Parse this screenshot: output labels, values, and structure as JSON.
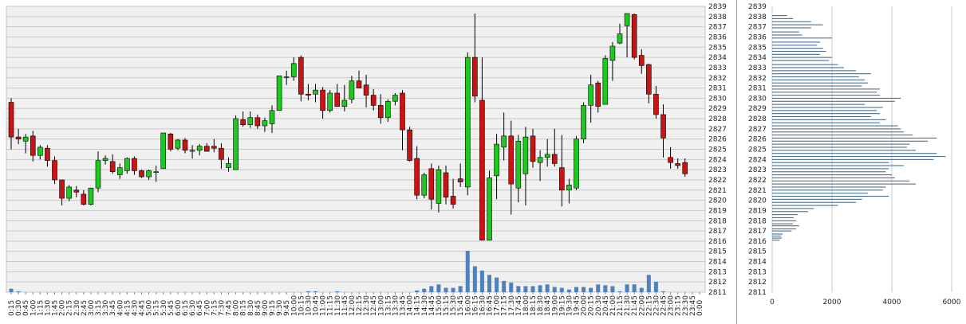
{
  "chart_data": [
    {
      "type": "candlestick",
      "title": "",
      "ylim": [
        2811,
        2839
      ],
      "y_ticks": [
        2811,
        2812,
        2813,
        2814,
        2815,
        2816,
        2817,
        2818,
        2819,
        2820,
        2821,
        2822,
        2823,
        2824,
        2825,
        2826,
        2827,
        2828,
        2829,
        2830,
        2831,
        2832,
        2833,
        2834,
        2835,
        2836,
        2837,
        2838,
        2839
      ],
      "grid": true,
      "bullish_color": "#1ec81e",
      "bearish_color": "#c81414",
      "volume_color": "#4f81bd",
      "times": [
        "0:15",
        "0:30",
        "0:45",
        "1:00",
        "1:15",
        "1:30",
        "1:45",
        "2:00",
        "2:15",
        "2:30",
        "2:45",
        "3:00",
        "3:15",
        "3:30",
        "3:45",
        "4:00",
        "4:15",
        "4:30",
        "4:45",
        "5:00",
        "5:15",
        "5:30",
        "5:45",
        "6:00",
        "6:15",
        "6:30",
        "6:45",
        "7:00",
        "7:15",
        "7:30",
        "7:45",
        "8:00",
        "8:15",
        "8:30",
        "8:45",
        "9:00",
        "9:15",
        "9:30",
        "9:45",
        "10:00",
        "10:15",
        "10:30",
        "10:45",
        "11:00",
        "11:15",
        "11:30",
        "11:45",
        "12:00",
        "12:15",
        "12:30",
        "12:45",
        "13:00",
        "13:15",
        "13:30",
        "13:45",
        "14:00",
        "14:15",
        "14:30",
        "14:45",
        "15:00",
        "15:15",
        "15:30",
        "15:45",
        "16:00",
        "16:15",
        "16:30",
        "16:45",
        "17:00",
        "17:15",
        "17:30",
        "17:45",
        "18:00",
        "18:15",
        "18:30",
        "18:45",
        "19:00",
        "19:15",
        "19:30",
        "19:45",
        "20:00",
        "20:15",
        "20:30",
        "20:45",
        "21:00",
        "21:15",
        "21:30",
        "21:45",
        "22:00",
        "22:15",
        "22:30",
        "22:45",
        "23:00",
        "23:15",
        "23:30",
        "23:45",
        "0:00"
      ],
      "ohlc": [
        [
          2829.6,
          2830,
          2825,
          2826.2
        ],
        [
          2826.2,
          2827,
          2825.5,
          2826
        ],
        [
          2825.8,
          2826.5,
          2824.6,
          2826.2
        ],
        [
          2826.3,
          2826.8,
          2823.8,
          2824.4
        ],
        [
          2824.4,
          2825.4,
          2824,
          2825.2
        ],
        [
          2825.1,
          2825.4,
          2823.3,
          2823.9
        ],
        [
          2823.9,
          2824.3,
          2821.6,
          2822
        ],
        [
          2822,
          2822,
          2819.5,
          2820.2
        ],
        [
          2820.2,
          2821.5,
          2819.9,
          2821.3
        ],
        [
          2821,
          2821.4,
          2820.3,
          2820.8
        ],
        [
          2820.6,
          2821,
          2819.5,
          2819.6
        ],
        [
          2819.6,
          2821.2,
          2819.5,
          2821.2
        ],
        [
          2821.2,
          2824.8,
          2820.8,
          2823.9
        ],
        [
          2823.9,
          2824.4,
          2823.5,
          2824.1
        ],
        [
          2823.8,
          2824.5,
          2822.6,
          2822.8
        ],
        [
          2822.5,
          2823.6,
          2822.1,
          2823.2
        ],
        [
          2822.9,
          2824.2,
          2822.6,
          2824.1
        ],
        [
          2824.1,
          2824.3,
          2822.5,
          2822.9
        ],
        [
          2822.9,
          2823,
          2822.2,
          2822.3
        ],
        [
          2822.3,
          2823,
          2822,
          2822.9
        ],
        [
          2822.8,
          2823.4,
          2821.8,
          2822.8
        ],
        [
          2823.1,
          2826.6,
          2823.1,
          2826.6
        ],
        [
          2826.5,
          2826.6,
          2824.8,
          2825
        ],
        [
          2825.1,
          2826,
          2824.9,
          2825.9
        ],
        [
          2825.9,
          2826.1,
          2824.6,
          2824.9
        ],
        [
          2824.8,
          2825.4,
          2824.1,
          2824.9
        ],
        [
          2824.9,
          2825.5,
          2824.4,
          2825.3
        ],
        [
          2825.3,
          2825.6,
          2824.8,
          2824.8
        ],
        [
          2825.3,
          2826,
          2824.7,
          2825.1
        ],
        [
          2825.1,
          2825.6,
          2823.1,
          2824
        ],
        [
          2823.2,
          2824.2,
          2822.8,
          2823.6
        ],
        [
          2823,
          2828.3,
          2823,
          2828
        ],
        [
          2827.9,
          2828.7,
          2827.2,
          2827.4
        ],
        [
          2827.4,
          2828.7,
          2827.1,
          2828.1
        ],
        [
          2828.1,
          2828.4,
          2827,
          2827.3
        ],
        [
          2827.3,
          2828.1,
          2826.7,
          2827.8
        ],
        [
          2827.5,
          2829.3,
          2826.6,
          2828.8
        ],
        [
          2828.8,
          2832.2,
          2828.8,
          2832.2
        ],
        [
          2832.1,
          2832.7,
          2831.3,
          2832.1
        ],
        [
          2832.1,
          2834,
          2831.7,
          2833.4
        ],
        [
          2834,
          2834.2,
          2829.7,
          2830.4
        ],
        [
          2830.4,
          2831.4,
          2829.8,
          2830.3
        ],
        [
          2830.4,
          2831.4,
          2829.6,
          2830.8
        ],
        [
          2830.8,
          2831.1,
          2828,
          2828.8
        ],
        [
          2828.8,
          2830.8,
          2828.6,
          2830.5
        ],
        [
          2830.5,
          2831.4,
          2829.2,
          2829.2
        ],
        [
          2829.2,
          2831.3,
          2828.7,
          2829.8
        ],
        [
          2829.9,
          2832.2,
          2829.5,
          2831.7
        ],
        [
          2831.7,
          2832.7,
          2831.1,
          2831
        ],
        [
          2831.3,
          2832.3,
          2829.1,
          2830.3
        ],
        [
          2830.3,
          2830.9,
          2828.8,
          2829.3
        ],
        [
          2829.3,
          2830.4,
          2827.5,
          2828.1
        ],
        [
          2828.1,
          2829.9,
          2827.7,
          2829.7
        ],
        [
          2829.7,
          2830.5,
          2829.3,
          2830.3
        ],
        [
          2830.5,
          2830.8,
          2824.9,
          2826.9
        ],
        [
          2826.9,
          2827.2,
          2823.8,
          2823.9
        ],
        [
          2824.1,
          2825.3,
          2820.1,
          2820.5
        ],
        [
          2820.5,
          2822.7,
          2820.2,
          2822.5
        ],
        [
          2823.1,
          2823.6,
          2819.1,
          2820.1
        ],
        [
          2819.7,
          2823.4,
          2818.8,
          2823
        ],
        [
          2822.7,
          2823.4,
          2819.6,
          2820.3
        ],
        [
          2820.4,
          2822.1,
          2819.2,
          2819.6
        ],
        [
          2822.1,
          2823.6,
          2821.3,
          2821.8
        ],
        [
          2821.3,
          2834.5,
          2820.5,
          2834
        ],
        [
          2834,
          2838.3,
          2829.6,
          2830.2
        ],
        [
          2829.8,
          2834,
          2816.1,
          2816.1
        ],
        [
          2816.1,
          2822.9,
          2816.1,
          2822.2
        ],
        [
          2822.4,
          2826.5,
          2820.1,
          2825.5
        ],
        [
          2825.2,
          2828.6,
          2823.9,
          2826.3
        ],
        [
          2826.3,
          2827.8,
          2818.6,
          2821.6
        ],
        [
          2821.2,
          2826.4,
          2819.8,
          2825.8
        ],
        [
          2822.6,
          2827.2,
          2819.5,
          2826.2
        ],
        [
          2826.3,
          2827,
          2823.2,
          2823.8
        ],
        [
          2823.7,
          2824.9,
          2821.9,
          2824.2
        ],
        [
          2824.2,
          2826,
          2823.3,
          2824.5
        ],
        [
          2824.5,
          2827,
          2823.3,
          2823.6
        ],
        [
          2823.2,
          2826.4,
          2819.4,
          2821
        ],
        [
          2821,
          2822.1,
          2819.7,
          2821.5
        ],
        [
          2821.2,
          2826.3,
          2821,
          2826
        ],
        [
          2826,
          2829.6,
          2825.6,
          2829.3
        ],
        [
          2829.3,
          2832.3,
          2827.6,
          2831.3
        ],
        [
          2831.5,
          2831.7,
          2828.6,
          2829.2
        ],
        [
          2829.4,
          2834.2,
          2829.4,
          2833.9
        ],
        [
          2833.7,
          2835.5,
          2831.7,
          2835.1
        ],
        [
          2835.4,
          2837.3,
          2835.3,
          2836.3
        ],
        [
          2837.1,
          2838.3,
          2834,
          2838.3
        ],
        [
          2838.2,
          2838.3,
          2833.8,
          2834
        ],
        [
          2834.2,
          2834.8,
          2832.4,
          2833.2
        ],
        [
          2833.3,
          2833.4,
          2829.5,
          2830.4
        ],
        [
          2830.4,
          2831.2,
          2828,
          2828.4
        ],
        [
          2828.4,
          2829.4,
          2824.2,
          2826.1
        ],
        [
          2824.2,
          2825.2,
          2823.1,
          2823.7
        ],
        [
          2823.6,
          2824.1,
          2823.1,
          2823.4
        ],
        [
          2823.7,
          2824.1,
          2822.3,
          2822.6
        ],
        null
      ],
      "volume": [
        4,
        1,
        0,
        0,
        0,
        0,
        0,
        0,
        0,
        0,
        0,
        0,
        0,
        0,
        0,
        0,
        0,
        0,
        0,
        0,
        0,
        0,
        0,
        0,
        0,
        0,
        0,
        0,
        0,
        0,
        0,
        0,
        0,
        0,
        0,
        0,
        0,
        0,
        0,
        0,
        0,
        1,
        1,
        0,
        0,
        1,
        0,
        0,
        0,
        0,
        0,
        0,
        0,
        0,
        0,
        0,
        2,
        4,
        7,
        9,
        5,
        5,
        7,
        48,
        30,
        25,
        20,
        17,
        13,
        11,
        7,
        7,
        7,
        8,
        9,
        6,
        5,
        3,
        6,
        6,
        5,
        9,
        8,
        7,
        1,
        9,
        9,
        5,
        20,
        12,
        1,
        0,
        0,
        0,
        0,
        0
      ]
    },
    {
      "type": "bar",
      "orientation": "horizontal",
      "title": "",
      "xlim": [
        0,
        6000
      ],
      "x_ticks": [
        "0",
        "2000",
        "4000",
        "6000"
      ],
      "grid": true,
      "bar_color": "#4a6f8f",
      "price_ticks": [
        2811,
        2812,
        2813,
        2814,
        2815,
        2816,
        2817,
        2818,
        2819,
        2820,
        2821,
        2822,
        2823,
        2824,
        2825,
        2826,
        2827,
        2828,
        2829,
        2830,
        2831,
        2832,
        2833,
        2834,
        2835,
        2836,
        2837,
        2838,
        2839
      ],
      "profile": [
        [
          2816.1,
          250
        ],
        [
          2816.3,
          320
        ],
        [
          2816.5,
          300
        ],
        [
          2816.7,
          350
        ],
        [
          2817.0,
          650
        ],
        [
          2817.2,
          800
        ],
        [
          2817.5,
          900
        ],
        [
          2817.7,
          700
        ],
        [
          2818.0,
          800
        ],
        [
          2818.3,
          720
        ],
        [
          2818.6,
          850
        ],
        [
          2818.9,
          1200
        ],
        [
          2819.2,
          1400
        ],
        [
          2819.5,
          2200
        ],
        [
          2819.8,
          2800
        ],
        [
          2820.1,
          3000
        ],
        [
          2820.4,
          3900
        ],
        [
          2820.7,
          3200
        ],
        [
          2821.0,
          3700
        ],
        [
          2821.3,
          3800
        ],
        [
          2821.6,
          4800
        ],
        [
          2821.9,
          4600
        ],
        [
          2822.2,
          4100
        ],
        [
          2822.5,
          4000
        ],
        [
          2822.8,
          3800
        ],
        [
          2823.1,
          3900
        ],
        [
          2823.4,
          4400
        ],
        [
          2823.7,
          3900
        ],
        [
          2824.0,
          5400
        ],
        [
          2824.3,
          5800
        ],
        [
          2824.6,
          5500
        ],
        [
          2824.9,
          4800
        ],
        [
          2825.2,
          4500
        ],
        [
          2825.5,
          4600
        ],
        [
          2825.8,
          5200
        ],
        [
          2826.1,
          5500
        ],
        [
          2826.4,
          4700
        ],
        [
          2826.7,
          4400
        ],
        [
          2827.0,
          4300
        ],
        [
          2827.3,
          4200
        ],
        [
          2827.6,
          3600
        ],
        [
          2827.9,
          3800
        ],
        [
          2828.2,
          3300
        ],
        [
          2828.5,
          3600
        ],
        [
          2828.8,
          3500
        ],
        [
          2829.1,
          3700
        ],
        [
          2829.4,
          3100
        ],
        [
          2829.7,
          4100
        ],
        [
          2830.0,
          4300
        ],
        [
          2830.3,
          3600
        ],
        [
          2830.6,
          3500
        ],
        [
          2830.9,
          3600
        ],
        [
          2831.2,
          3000
        ],
        [
          2831.5,
          3200
        ],
        [
          2831.8,
          3100
        ],
        [
          2832.1,
          2900
        ],
        [
          2832.4,
          3300
        ],
        [
          2832.7,
          2800
        ],
        [
          2833.0,
          2400
        ],
        [
          2833.3,
          2200
        ],
        [
          2833.7,
          1900
        ],
        [
          2834.0,
          2000
        ],
        [
          2834.3,
          1600
        ],
        [
          2834.6,
          1800
        ],
        [
          2834.9,
          1700
        ],
        [
          2835.2,
          1500
        ],
        [
          2835.5,
          1600
        ],
        [
          2835.9,
          2000
        ],
        [
          2836.2,
          1000
        ],
        [
          2836.5,
          900
        ],
        [
          2836.9,
          1300
        ],
        [
          2837.2,
          1700
        ],
        [
          2837.5,
          1300
        ],
        [
          2837.8,
          700
        ],
        [
          2838.1,
          500
        ]
      ]
    }
  ]
}
